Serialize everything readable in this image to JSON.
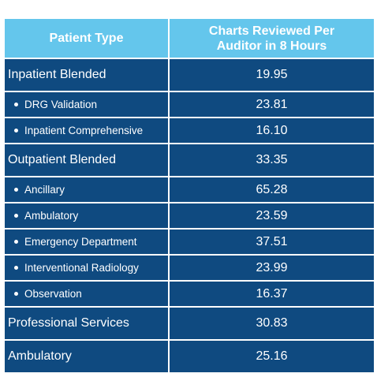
{
  "table": {
    "headers": {
      "col1": "Patient Type",
      "col2_line1": "Charts Reviewed Per",
      "col2_line2": "Auditor in 8 Hours"
    },
    "rows": [
      {
        "label": "Inpatient Blended",
        "value": "19.95"
      },
      {
        "label": "DRG Validation",
        "value": "23.81"
      },
      {
        "label": "Inpatient Comprehensive",
        "value": "16.10"
      },
      {
        "label": "Outpatient Blended",
        "value": "33.35"
      },
      {
        "label": "Ancillary",
        "value": "65.28"
      },
      {
        "label": "Ambulatory",
        "value": "23.59"
      },
      {
        "label": "Emergency Department",
        "value": "37.51"
      },
      {
        "label": "Interventional Radiology",
        "value": "23.99"
      },
      {
        "label": "Observation",
        "value": "16.37"
      },
      {
        "label": "Professional Services",
        "value": "30.83"
      },
      {
        "label": "Ambulatory",
        "value": "25.16"
      }
    ]
  },
  "colors": {
    "header_bg": "#64c6ec",
    "row_bg": "#0f4a80",
    "text": "#ffffff"
  }
}
